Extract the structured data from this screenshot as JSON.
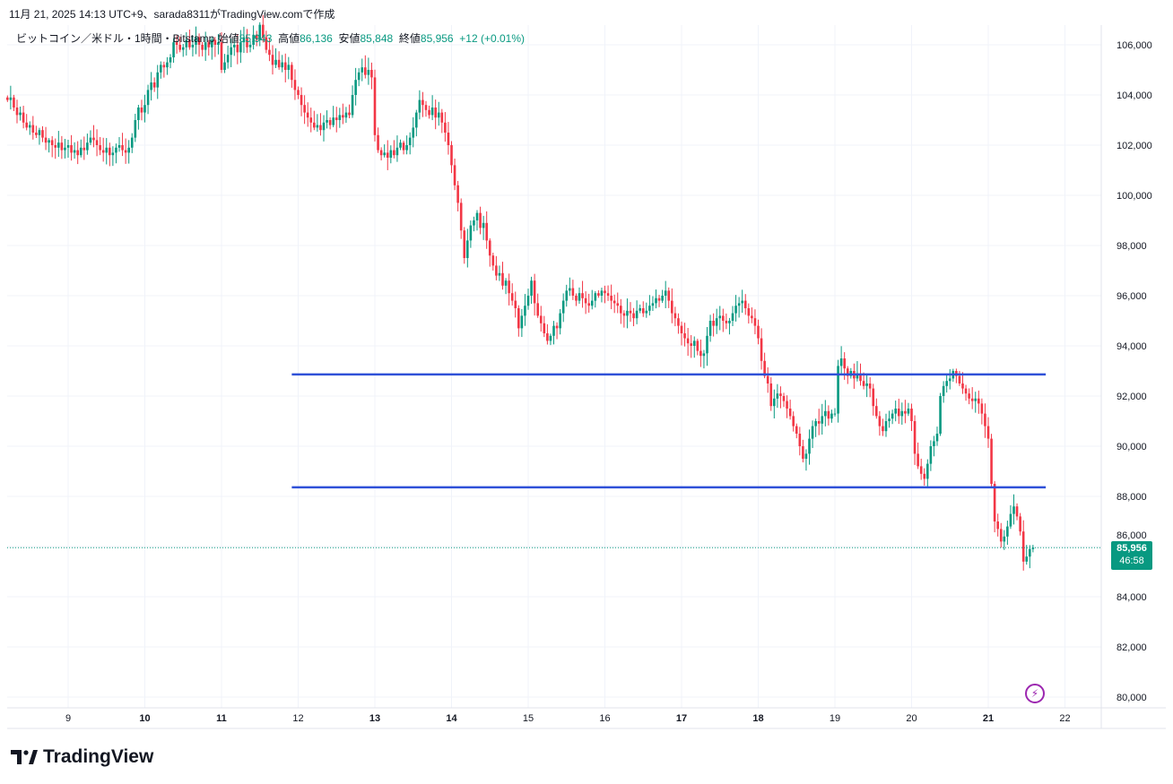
{
  "snapshot_caption": "11月 21, 2025 14:13 UTC+9、sarada8311がTradingView.comで作成",
  "legend": {
    "symbol": "ビットコイン／米ドル・1時間・Bitstamp",
    "open_label": "始値",
    "open": "85,943",
    "high_label": "高値",
    "high": "86,136",
    "low_label": "安値",
    "low": "85,848",
    "close_label": "終値",
    "close": "85,956",
    "change": "+12 (+0.01%)"
  },
  "last_price": {
    "price": "85,956",
    "countdown": "46:58",
    "value": 85956
  },
  "logo_text": "TradingView",
  "colors": {
    "up": "#089981",
    "down": "#f23645",
    "drawing": "#2f50d8",
    "grid": "#f0f3fa",
    "alert": "#9c27b0"
  },
  "icons": {
    "alert": "lightning-icon",
    "logo": "tradingview-logo-icon"
  },
  "chart_data": {
    "type": "candlestick",
    "interval": "1h",
    "first_candle": "Nov 8 05:00",
    "first_open": 103900,
    "closes": [
      103800,
      103900,
      103500,
      103200,
      103300,
      102900,
      102700,
      102800,
      102500,
      102400,
      102600,
      102300,
      102100,
      102200,
      102000,
      101900,
      102100,
      101800,
      101900,
      102000,
      101700,
      101800,
      101600,
      101900,
      101800,
      102100,
      102300,
      102200,
      102000,
      101800,
      101700,
      101900,
      101600,
      101700,
      101900,
      102000,
      101800,
      101700,
      101900,
      102300,
      103000,
      103500,
      103300,
      103600,
      104200,
      104500,
      104300,
      104900,
      105200,
      105100,
      105300,
      105500,
      106100,
      106000,
      105800,
      105900,
      106200,
      105900,
      106000,
      106300,
      106000,
      105800,
      106100,
      105900,
      106200,
      106000,
      106100,
      105000,
      105300,
      105600,
      105900,
      106000,
      105700,
      106100,
      106300,
      105900,
      106000,
      106400,
      106200,
      106800,
      106300,
      105800,
      105600,
      105200,
      105400,
      105100,
      105300,
      105000,
      105200,
      104600,
      104200,
      104000,
      103600,
      103300,
      103100,
      102900,
      102700,
      102800,
      102600,
      102900,
      103000,
      102800,
      103100,
      103000,
      103200,
      103100,
      103300,
      103200,
      104000,
      104600,
      104900,
      105100,
      104800,
      105000,
      104700,
      102400,
      101800,
      101600,
      101700,
      101500,
      101800,
      101600,
      101900,
      102100,
      101800,
      102000,
      102300,
      102700,
      103300,
      103800,
      103600,
      103400,
      103200,
      103500,
      103100,
      103300,
      102900,
      102500,
      102000,
      101200,
      100400,
      99700,
      98600,
      97500,
      98200,
      98800,
      99000,
      99300,
      98700,
      98900,
      98200,
      97600,
      97200,
      96800,
      96900,
      96400,
      96600,
      96100,
      95800,
      95500,
      94700,
      95200,
      95600,
      96000,
      96600,
      95700,
      95200,
      94900,
      94500,
      94200,
      94400,
      94800,
      94700,
      95300,
      95800,
      96200,
      96300,
      96000,
      95800,
      96100,
      95900,
      95700,
      95600,
      95800,
      96100,
      96000,
      96200,
      96100,
      96000,
      95800,
      95700,
      95600,
      95300,
      95200,
      95400,
      95300,
      95100,
      95400,
      95500,
      95300,
      95400,
      95600,
      95700,
      95900,
      95800,
      96000,
      96200,
      95800,
      95300,
      95100,
      94800,
      94500,
      94300,
      94100,
      94000,
      94200,
      93800,
      93600,
      93700,
      94400,
      95000,
      94800,
      95100,
      95200,
      95000,
      94900,
      95000,
      95300,
      95600,
      95700,
      95800,
      95500,
      95200,
      95100,
      94800,
      94300,
      93400,
      92800,
      92500,
      91600,
      91900,
      92100,
      92000,
      91800,
      91500,
      91200,
      90800,
      90500,
      90000,
      89500,
      89700,
      90300,
      90800,
      91000,
      90900,
      91200,
      91400,
      91100,
      91300,
      91300,
      93200,
      93500,
      93100,
      92800,
      93000,
      92700,
      92900,
      92600,
      92400,
      92500,
      92300,
      91600,
      91200,
      90800,
      90600,
      91000,
      91100,
      91300,
      91500,
      91200,
      91400,
      91300,
      91500,
      91000,
      89700,
      89200,
      88900,
      88700,
      89300,
      90000,
      90200,
      90500,
      92000,
      92400,
      92600,
      92700,
      93000,
      92800,
      92500,
      92300,
      92100,
      91900,
      91800,
      91900,
      91700,
      91300,
      90800,
      90300,
      88500,
      87000,
      86700,
      86200,
      86400,
      86800,
      87300,
      87600,
      87200,
      86600,
      85400,
      85600,
      85900,
      85956
    ],
    "price_ticks": [
      "106,000",
      "104,000",
      "102,000",
      "100,000",
      "98,000",
      "96,000",
      "94,000",
      "92,000",
      "90,000",
      "88,000",
      "86,000",
      "84,000",
      "82,000",
      "80,000"
    ],
    "price_tick_values": [
      106000,
      104000,
      102000,
      100000,
      98000,
      96000,
      94000,
      92000,
      90000,
      88000,
      86000,
      84000,
      82000,
      80000
    ],
    "time_ticks": [
      "9",
      "10",
      "11",
      "12",
      "13",
      "14",
      "15",
      "16",
      "17",
      "18",
      "19",
      "20",
      "21",
      "22"
    ],
    "ylim": [
      80000,
      106000
    ],
    "grid": true,
    "horizontal_lines": [
      {
        "price": 92860,
        "from": "Nov 11 22:00",
        "to": "Nov 21 18:00"
      },
      {
        "price": 88360,
        "from": "Nov 11 22:00",
        "to": "Nov 21 18:00"
      }
    ]
  }
}
